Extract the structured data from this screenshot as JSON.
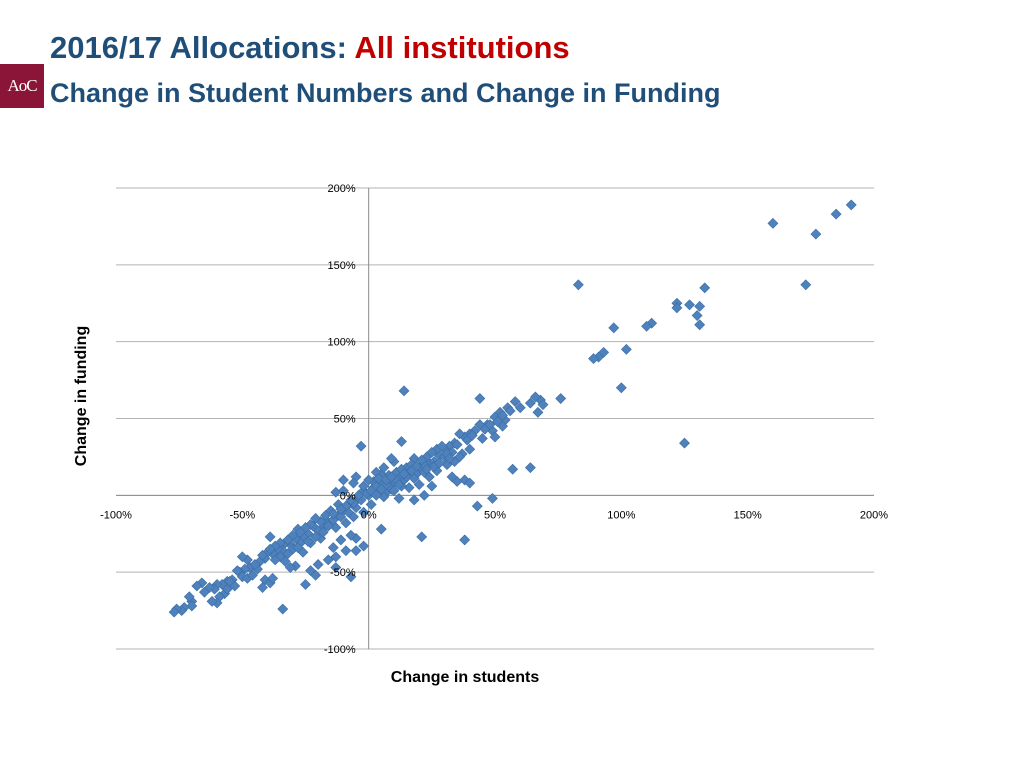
{
  "header": {
    "title_main": "2016/17 Allocations: ",
    "title_accent": "All institutions",
    "subtitle": "Change in Student Numbers and Change in Funding",
    "logo_text": "AoC"
  },
  "colors": {
    "title": "#1f4e79",
    "accent": "#c00000",
    "marker": "#4f81bd",
    "logo_bg": "#8a1538"
  },
  "chart_data": {
    "type": "scatter",
    "xlabel": "Change in students",
    "ylabel": "Change in funding",
    "xlim": [
      -1.0,
      2.0
    ],
    "ylim": [
      -1.0,
      2.0
    ],
    "x_ticks": [
      -1.0,
      -0.5,
      0,
      0.5,
      1.0,
      1.5,
      2.0
    ],
    "x_tick_labels": [
      "-100%",
      "-50%",
      "0%",
      "50%",
      "100%",
      "150%",
      "200%"
    ],
    "y_ticks": [
      -1.0,
      -0.5,
      0,
      0.5,
      1.0,
      1.5,
      2.0
    ],
    "y_tick_labels": [
      "-100%",
      "-50%",
      "0%",
      "50%",
      "100%",
      "150%",
      "200%"
    ],
    "grid": "horizontal",
    "marker": "diamond",
    "points": [
      [
        1.91,
        1.89
      ],
      [
        1.85,
        1.83
      ],
      [
        1.77,
        1.7
      ],
      [
        1.6,
        1.77
      ],
      [
        1.73,
        1.37
      ],
      [
        0.83,
        1.37
      ],
      [
        1.33,
        1.35
      ],
      [
        1.22,
        1.25
      ],
      [
        1.27,
        1.24
      ],
      [
        1.31,
        1.23
      ],
      [
        1.22,
        1.22
      ],
      [
        1.3,
        1.17
      ],
      [
        1.12,
        1.12
      ],
      [
        1.31,
        1.11
      ],
      [
        1.1,
        1.1
      ],
      [
        0.97,
        1.09
      ],
      [
        0.93,
        0.93
      ],
      [
        0.91,
        0.9
      ],
      [
        0.89,
        0.89
      ],
      [
        1.02,
        0.95
      ],
      [
        1.0,
        0.7
      ],
      [
        1.25,
        0.34
      ],
      [
        0.76,
        0.63
      ],
      [
        0.68,
        0.62
      ],
      [
        0.66,
        0.64
      ],
      [
        0.64,
        0.6
      ],
      [
        0.69,
        0.59
      ],
      [
        0.67,
        0.54
      ],
      [
        0.6,
        0.57
      ],
      [
        0.58,
        0.61
      ],
      [
        0.55,
        0.57
      ],
      [
        0.52,
        0.54
      ],
      [
        0.54,
        0.49
      ],
      [
        0.5,
        0.51
      ],
      [
        0.53,
        0.45
      ],
      [
        0.47,
        0.46
      ],
      [
        0.49,
        0.42
      ],
      [
        0.5,
        0.38
      ],
      [
        0.44,
        0.63
      ],
      [
        0.44,
        0.46
      ],
      [
        0.45,
        0.37
      ],
      [
        0.42,
        0.42
      ],
      [
        0.4,
        0.4
      ],
      [
        0.38,
        0.38
      ],
      [
        0.36,
        0.4
      ],
      [
        0.4,
        0.3
      ],
      [
        0.34,
        0.34
      ],
      [
        0.32,
        0.32
      ],
      [
        0.3,
        0.3
      ],
      [
        0.37,
        0.27
      ],
      [
        0.14,
        0.68
      ],
      [
        0.57,
        0.17
      ],
      [
        0.64,
        0.18
      ],
      [
        0.38,
        0.1
      ],
      [
        0.4,
        0.08
      ],
      [
        0.35,
        0.09
      ],
      [
        0.43,
        -0.07
      ],
      [
        0.49,
        -0.02
      ],
      [
        0.21,
        -0.27
      ],
      [
        0.38,
        -0.29
      ],
      [
        0.07,
        0.02
      ],
      [
        0.22,
        0.0
      ],
      [
        0.25,
        0.06
      ],
      [
        -0.03,
        0.32
      ],
      [
        0.13,
        0.35
      ],
      [
        0.1,
        0.22
      ],
      [
        -0.05,
        0.12
      ],
      [
        0.05,
        0.14
      ],
      [
        -0.1,
        0.1
      ],
      [
        -0.13,
        0.02
      ],
      [
        -0.06,
        0.08
      ],
      [
        0.02,
        0.05
      ],
      [
        0.1,
        0.08
      ],
      [
        0.16,
        0.15
      ],
      [
        0.2,
        0.18
      ],
      [
        0.24,
        0.21
      ],
      [
        0.28,
        0.26
      ],
      [
        0.18,
        0.24
      ],
      [
        0.12,
        0.12
      ],
      [
        0.08,
        0.1
      ],
      [
        0.04,
        0.02
      ],
      [
        0.0,
        0.0
      ],
      [
        -0.02,
        0.03
      ],
      [
        0.06,
        -0.01
      ],
      [
        0.09,
        0.04
      ],
      [
        0.14,
        0.1
      ],
      [
        0.22,
        0.2
      ],
      [
        0.26,
        0.22
      ],
      [
        0.3,
        0.25
      ],
      [
        0.33,
        0.28
      ],
      [
        0.15,
        0.18
      ],
      [
        0.11,
        0.15
      ],
      [
        0.19,
        0.14
      ],
      [
        0.23,
        0.25
      ],
      [
        0.27,
        0.3
      ],
      [
        0.02,
        0.09
      ],
      [
        -0.04,
        -0.02
      ],
      [
        0.01,
        -0.06
      ],
      [
        -0.02,
        -0.11
      ],
      [
        -0.05,
        -0.08
      ],
      [
        -0.08,
        -0.06
      ],
      [
        -0.06,
        -0.14
      ],
      [
        -0.1,
        -0.1
      ],
      [
        -0.12,
        -0.13
      ],
      [
        -0.15,
        -0.18
      ],
      [
        -0.09,
        -0.18
      ],
      [
        -0.13,
        -0.21
      ],
      [
        -0.17,
        -0.16
      ],
      [
        -0.18,
        -0.21
      ],
      [
        -0.2,
        -0.23
      ],
      [
        -0.22,
        -0.2
      ],
      [
        -0.24,
        -0.25
      ],
      [
        -0.19,
        -0.28
      ],
      [
        -0.26,
        -0.27
      ],
      [
        -0.28,
        -0.22
      ],
      [
        -0.23,
        -0.31
      ],
      [
        -0.27,
        -0.31
      ],
      [
        -0.29,
        -0.28
      ],
      [
        -0.31,
        -0.32
      ],
      [
        -0.33,
        -0.31
      ],
      [
        -0.3,
        -0.35
      ],
      [
        -0.34,
        -0.36
      ],
      [
        -0.36,
        -0.35
      ],
      [
        -0.38,
        -0.38
      ],
      [
        -0.4,
        -0.37
      ],
      [
        -0.35,
        -0.4
      ],
      [
        -0.33,
        -0.43
      ],
      [
        -0.39,
        -0.27
      ],
      [
        -0.29,
        -0.46
      ],
      [
        -0.26,
        -0.37
      ],
      [
        -0.41,
        -0.41
      ],
      [
        -0.43,
        -0.43
      ],
      [
        -0.45,
        -0.46
      ],
      [
        -0.47,
        -0.47
      ],
      [
        -0.49,
        -0.48
      ],
      [
        -0.44,
        -0.48
      ],
      [
        -0.48,
        -0.42
      ],
      [
        -0.51,
        -0.5
      ],
      [
        -0.5,
        -0.53
      ],
      [
        -0.52,
        -0.49
      ],
      [
        -0.54,
        -0.55
      ],
      [
        -0.56,
        -0.56
      ],
      [
        -0.58,
        -0.58
      ],
      [
        -0.6,
        -0.58
      ],
      [
        -0.61,
        -0.61
      ],
      [
        -0.63,
        -0.6
      ],
      [
        -0.65,
        -0.63
      ],
      [
        -0.66,
        -0.57
      ],
      [
        -0.68,
        -0.59
      ],
      [
        -0.7,
        -0.69
      ],
      [
        -0.71,
        -0.66
      ],
      [
        -0.7,
        -0.72
      ],
      [
        -0.73,
        -0.73
      ],
      [
        -0.74,
        -0.75
      ],
      [
        -0.76,
        -0.74
      ],
      [
        -0.77,
        -0.76
      ],
      [
        -0.57,
        -0.64
      ],
      [
        -0.59,
        -0.66
      ],
      [
        -0.6,
        -0.7
      ],
      [
        -0.62,
        -0.69
      ],
      [
        -0.48,
        -0.54
      ],
      [
        -0.46,
        -0.52
      ],
      [
        -0.5,
        -0.4
      ],
      [
        -0.42,
        -0.6
      ],
      [
        -0.41,
        -0.55
      ],
      [
        -0.39,
        -0.57
      ],
      [
        -0.34,
        -0.74
      ],
      [
        -0.38,
        -0.54
      ],
      [
        -0.23,
        -0.49
      ],
      [
        -0.13,
        -0.4
      ],
      [
        -0.09,
        -0.36
      ],
      [
        -0.05,
        -0.36
      ],
      [
        -0.05,
        -0.28
      ],
      [
        -0.02,
        -0.33
      ],
      [
        -0.07,
        -0.26
      ],
      [
        0.05,
        -0.22
      ],
      [
        -0.2,
        -0.45
      ],
      [
        -0.16,
        -0.42
      ],
      [
        -0.14,
        -0.34
      ],
      [
        -0.11,
        -0.29
      ],
      [
        -0.13,
        -0.47
      ],
      [
        -0.31,
        -0.47
      ],
      [
        -0.21,
        -0.52
      ],
      [
        -0.07,
        -0.53
      ],
      [
        -0.25,
        -0.58
      ],
      [
        -0.55,
        -0.56
      ],
      [
        -0.53,
        -0.59
      ],
      [
        -0.56,
        -0.61
      ],
      [
        -0.45,
        -0.45
      ],
      [
        -0.37,
        -0.42
      ],
      [
        -0.32,
        -0.38
      ],
      [
        -0.28,
        -0.34
      ],
      [
        -0.24,
        -0.3
      ],
      [
        -0.21,
        -0.27
      ],
      [
        -0.18,
        -0.24
      ],
      [
        -0.16,
        -0.2
      ],
      [
        -0.14,
        -0.16
      ],
      [
        -0.11,
        -0.14
      ],
      [
        -0.08,
        -0.11
      ],
      [
        -0.06,
        -0.05
      ],
      [
        -0.03,
        -0.03
      ],
      [
        -0.01,
        0.01
      ],
      [
        0.03,
        0.06
      ],
      [
        0.05,
        0.09
      ],
      [
        0.08,
        0.13
      ],
      [
        0.11,
        0.1
      ],
      [
        0.13,
        0.17
      ],
      [
        0.17,
        0.2
      ],
      [
        0.21,
        0.23
      ],
      [
        0.25,
        0.28
      ],
      [
        0.29,
        0.32
      ],
      [
        0.31,
        0.27
      ],
      [
        0.35,
        0.33
      ],
      [
        0.39,
        0.36
      ],
      [
        0.41,
        0.39
      ],
      [
        0.46,
        0.43
      ],
      [
        0.48,
        0.46
      ],
      [
        0.51,
        0.48
      ],
      [
        0.53,
        0.52
      ],
      [
        0.56,
        0.55
      ],
      [
        0.16,
        0.05
      ],
      [
        0.18,
        -0.03
      ],
      [
        0.12,
        -0.02
      ],
      [
        0.2,
        0.07
      ],
      [
        0.24,
        0.12
      ],
      [
        0.27,
        0.16
      ],
      [
        0.31,
        0.2
      ],
      [
        0.34,
        0.22
      ],
      [
        0.36,
        0.25
      ],
      [
        0.33,
        0.12
      ],
      [
        0.09,
        0.24
      ],
      [
        0.06,
        0.18
      ],
      [
        0.03,
        0.15
      ],
      [
        0.0,
        0.1
      ],
      [
        -0.02,
        0.06
      ],
      [
        -0.1,
        0.03
      ],
      [
        -0.12,
        -0.06
      ],
      [
        -0.15,
        -0.1
      ],
      [
        -0.17,
        -0.13
      ],
      [
        -0.19,
        -0.17
      ],
      [
        -0.21,
        -0.15
      ],
      [
        -0.23,
        -0.19
      ],
      [
        -0.25,
        -0.21
      ],
      [
        -0.27,
        -0.24
      ],
      [
        -0.3,
        -0.26
      ],
      [
        -0.32,
        -0.29
      ],
      [
        -0.35,
        -0.31
      ],
      [
        -0.37,
        -0.33
      ],
      [
        -0.39,
        -0.35
      ],
      [
        -0.42,
        -0.39
      ],
      [
        0.04,
        0.11
      ],
      [
        0.07,
        0.07
      ],
      [
        0.1,
        0.03
      ],
      [
        0.13,
        0.06
      ],
      [
        0.15,
        0.12
      ],
      [
        0.18,
        0.11
      ],
      [
        0.22,
        0.15
      ],
      [
        0.26,
        0.19
      ],
      [
        0.28,
        0.21
      ],
      [
        0.32,
        0.24
      ],
      [
        -0.04,
        0.0
      ],
      [
        -0.07,
        -0.03
      ],
      [
        -0.09,
        -0.07
      ],
      [
        -0.11,
        -0.09
      ],
      [
        -0.14,
        -0.12
      ],
      [
        0.01,
        0.03
      ],
      [
        0.03,
        0.0
      ],
      [
        0.05,
        0.04
      ],
      [
        0.07,
        0.1
      ],
      [
        0.09,
        0.12
      ],
      [
        0.12,
        0.07
      ],
      [
        0.14,
        0.14
      ],
      [
        0.17,
        0.16
      ],
      [
        0.19,
        0.19
      ],
      [
        0.23,
        0.17
      ]
    ]
  }
}
